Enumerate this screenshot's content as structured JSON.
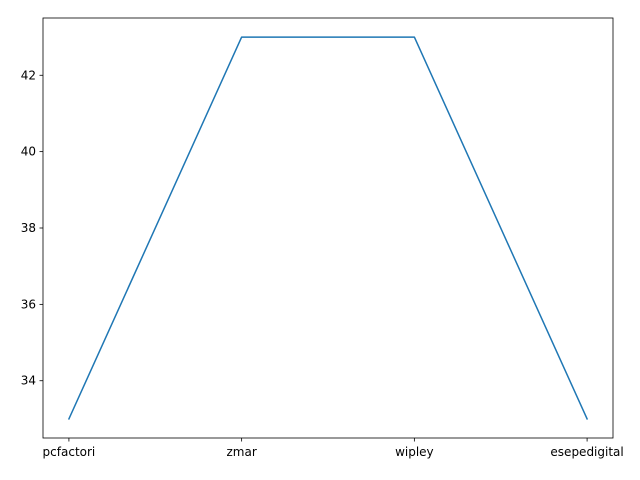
{
  "chart_data": {
    "type": "line",
    "title": "",
    "xlabel": "",
    "ylabel": "",
    "categories": [
      "pcfactori",
      "zmar",
      "wipley",
      "esepedigital"
    ],
    "series": [
      {
        "values": [
          33,
          43,
          43,
          33
        ],
        "color": "#1f77b4"
      }
    ],
    "ylim": [
      32.5,
      43.5
    ],
    "yticks": [
      34,
      36,
      38,
      40,
      42
    ],
    "grid": false,
    "legend": "none"
  }
}
